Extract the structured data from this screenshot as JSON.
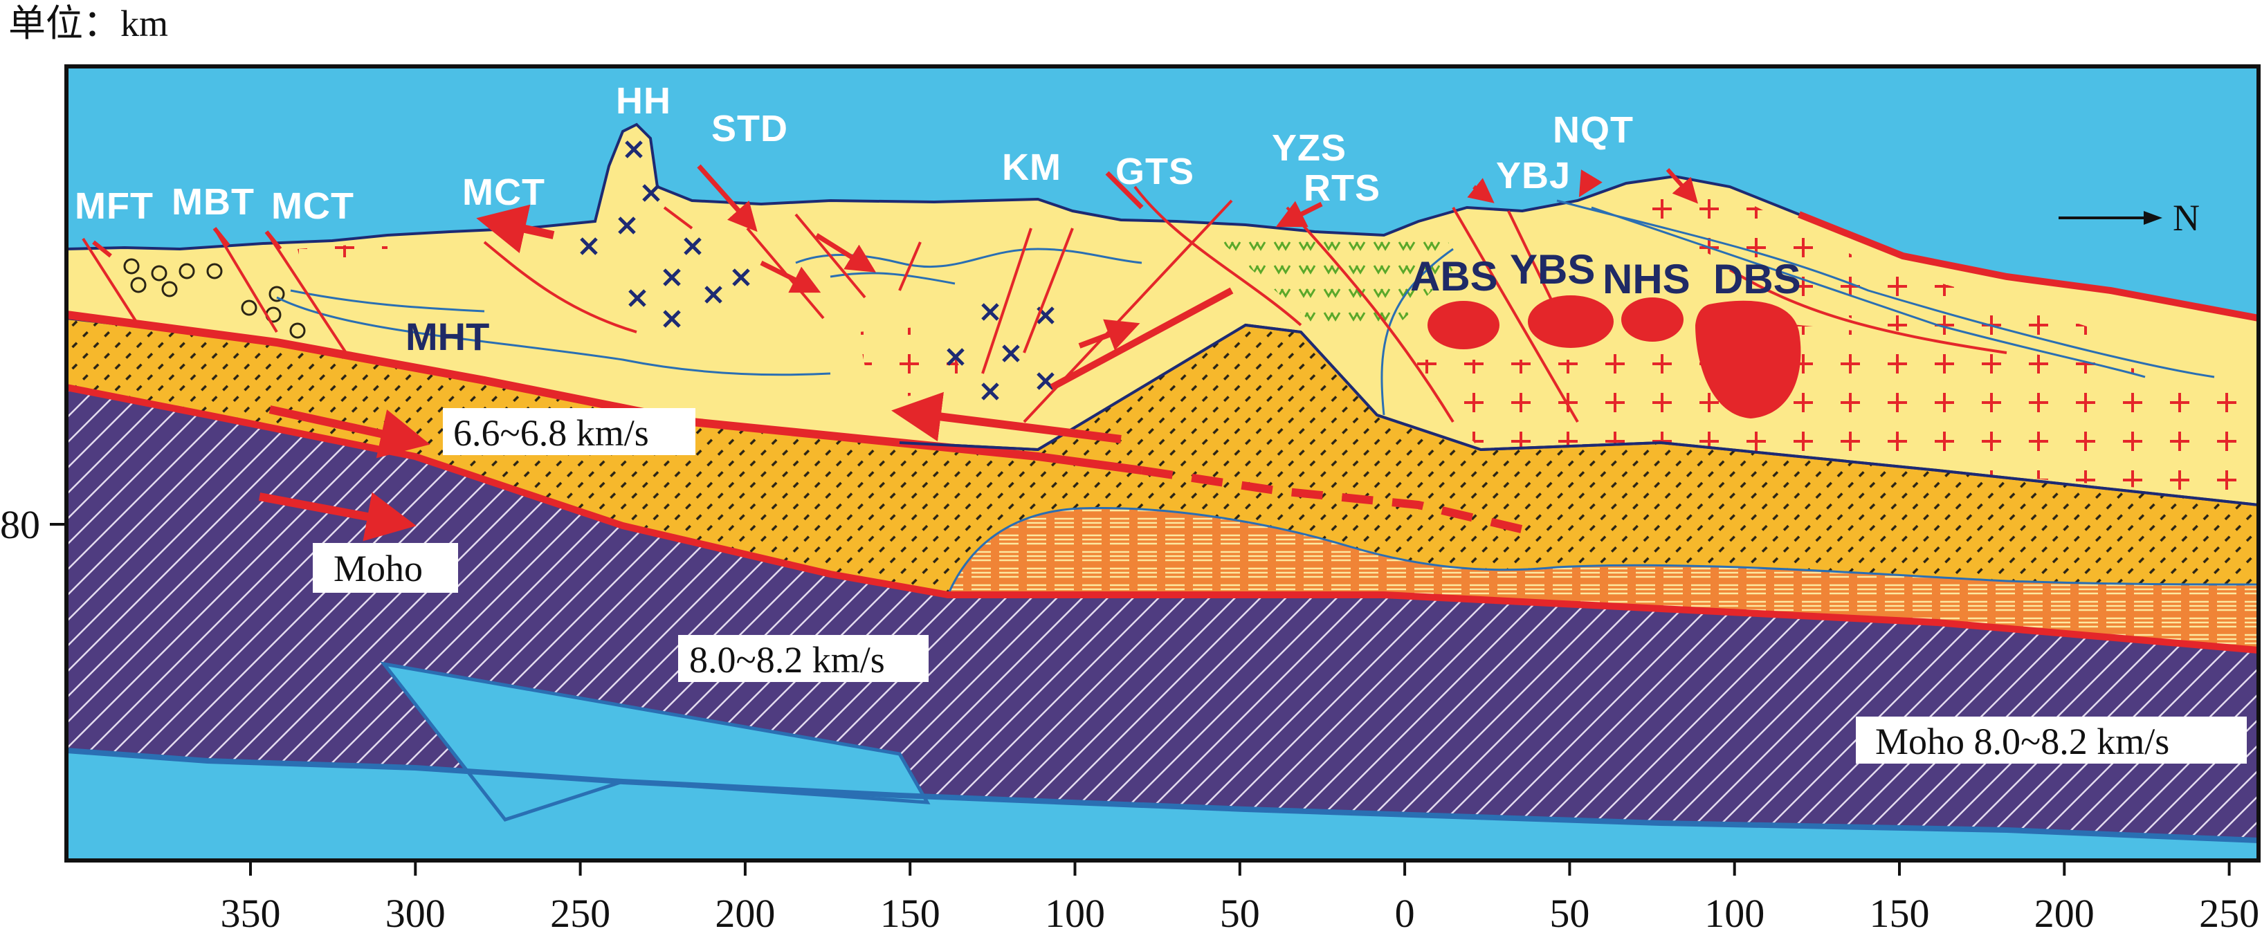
{
  "unit_label": "单位：km",
  "north_label": "N",
  "y_axis": {
    "tick_label": "80"
  },
  "x_axis": {
    "ticks": [
      "350",
      "300",
      "250",
      "200",
      "150",
      "100",
      "50",
      "0",
      "50",
      "100",
      "150",
      "200",
      "250"
    ]
  },
  "fault_labels": {
    "mft": "MFT",
    "mbt": "MBT",
    "mct_left": "MCT",
    "mct": "MCT",
    "hh": "HH",
    "std": "STD",
    "km": "KM",
    "gts": "GTS",
    "yzs": "YZS",
    "rts": "RTS",
    "ybj": "YBJ",
    "nqt": "NQT"
  },
  "structure_labels": {
    "mht": "MHT"
  },
  "pluton_labels": {
    "abs": "ABS",
    "ybs": "YBS",
    "nhs": "NHS",
    "dbs": "DBS"
  },
  "layer_labels": {
    "lower_crust_velocity": "6.6~6.8 km/s",
    "moho": "Moho",
    "mantle_velocity": "8.0~8.2 km/s",
    "moho_right": "Moho 8.0~8.2 km/s"
  },
  "colors": {
    "sky": "#4cbfe6",
    "upper_crust": "#fce98a",
    "lower_crust": "#f6b82c",
    "mantle": "#4f3c80",
    "mantle_hatch": "#e4dcef",
    "anomaly_body": "#f08436",
    "fault_red": "#e4262a",
    "boundary_blue": "#1d2a73"
  }
}
